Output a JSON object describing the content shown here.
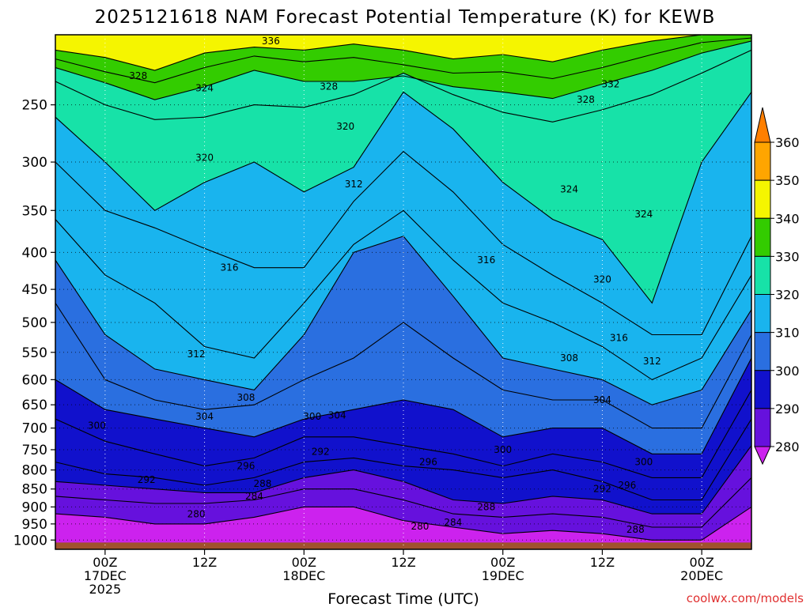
{
  "chart_data": {
    "type": "contour",
    "title": "2025121618 NAM Forecast Potential Temperature (K) for KEWB",
    "xlabel": "Forecast Time (UTC)",
    "ylabel": "",
    "credit": "coolwx.com/models",
    "y_scale": "log",
    "y_inverted": true,
    "y_ticks": [
      250,
      300,
      350,
      400,
      450,
      500,
      550,
      600,
      650,
      700,
      750,
      800,
      850,
      900,
      950,
      1000
    ],
    "ylim": [
      1030,
      200
    ],
    "x_ticks": [
      {
        "hour": 6,
        "lines": [
          "00Z",
          "17DEC",
          "2025"
        ]
      },
      {
        "hour": 18,
        "lines": [
          "12Z"
        ]
      },
      {
        "hour": 30,
        "lines": [
          "00Z",
          "18DEC"
        ]
      },
      {
        "hour": 42,
        "lines": [
          "12Z"
        ]
      },
      {
        "hour": 54,
        "lines": [
          "00Z",
          "19DEC"
        ]
      },
      {
        "hour": 66,
        "lines": [
          "12Z"
        ]
      },
      {
        "hour": 78,
        "lines": [
          "00Z",
          "20DEC"
        ]
      }
    ],
    "xlim": [
      0,
      84
    ],
    "colorbar": {
      "levels": [
        280,
        290,
        300,
        310,
        320,
        330,
        340,
        350,
        360
      ],
      "colors": [
        "#cc22ee",
        "#6611dd",
        "#1111cc",
        "#2a6fe0",
        "#19b4ee",
        "#17e2a8",
        "#33cc00",
        "#f5f500",
        "#ffa500",
        "#ff7f00"
      ]
    },
    "contour_interval": 2,
    "contours": [
      {
        "value": 336,
        "p": [
          210,
          215,
          224,
          212,
          208,
          210,
          206,
          210,
          216,
          213,
          218,
          210,
          204,
          200,
          200
        ]
      },
      {
        "value": 332,
        "p": [
          216,
          225,
          233,
          222,
          214,
          218,
          215,
          220,
          226,
          225,
          230,
          222,
          213,
          205,
          202
        ]
      },
      {
        "value": 328,
        "p": [
          222,
          233,
          246,
          236,
          224,
          232,
          232,
          228,
          236,
          240,
          245,
          234,
          224,
          212,
          204
        ]
      },
      {
        "value": 324,
        "p": [
          232,
          250,
          262,
          260,
          250,
          252,
          242,
          226,
          242,
          256,
          264,
          254,
          242,
          226,
          210
        ]
      },
      {
        "value": 320,
        "p": [
          260,
          300,
          350,
          320,
          300,
          330,
          305,
          240,
          270,
          320,
          360,
          384,
          470,
          300,
          240
        ]
      },
      {
        "value": 316,
        "p": [
          300,
          350,
          370,
          395,
          420,
          420,
          340,
          290,
          330,
          390,
          430,
          470,
          520,
          520,
          380
        ]
      },
      {
        "value": 312,
        "p": [
          360,
          430,
          470,
          540,
          560,
          470,
          390,
          350,
          410,
          470,
          500,
          540,
          600,
          560,
          430
        ]
      },
      {
        "value": 308,
        "p": [
          410,
          520,
          580,
          600,
          620,
          520,
          400,
          380,
          460,
          560,
          580,
          600,
          650,
          620,
          480
        ]
      },
      {
        "value": 304,
        "p": [
          470,
          600,
          640,
          660,
          650,
          600,
          560,
          500,
          560,
          620,
          640,
          640,
          700,
          700,
          520
        ]
      },
      {
        "value": 300,
        "p": [
          600,
          660,
          680,
          700,
          720,
          680,
          660,
          640,
          660,
          720,
          700,
          700,
          760,
          760,
          560
        ]
      },
      {
        "value": 296,
        "p": [
          680,
          730,
          760,
          790,
          770,
          720,
          720,
          740,
          760,
          790,
          760,
          780,
          820,
          820,
          620
        ]
      },
      {
        "value": 292,
        "p": [
          780,
          810,
          820,
          840,
          820,
          780,
          770,
          790,
          800,
          820,
          800,
          830,
          880,
          880,
          680
        ]
      },
      {
        "value": 288,
        "p": [
          830,
          840,
          850,
          860,
          860,
          820,
          800,
          830,
          880,
          890,
          870,
          880,
          920,
          920,
          740
        ]
      },
      {
        "value": 284,
        "p": [
          870,
          880,
          890,
          890,
          880,
          850,
          850,
          880,
          920,
          930,
          920,
          930,
          960,
          960,
          820
        ]
      },
      {
        "value": 280,
        "p": [
          920,
          930,
          950,
          950,
          930,
          900,
          900,
          940,
          960,
          980,
          970,
          980,
          1000,
          1000,
          900
        ]
      }
    ],
    "contour_hours": [
      0,
      6,
      12,
      18,
      24,
      30,
      36,
      42,
      48,
      54,
      60,
      66,
      72,
      78,
      84
    ],
    "contour_labels": [
      {
        "value": 336,
        "hour": 26,
        "p": 204
      },
      {
        "value": 328,
        "hour": 10,
        "p": 228
      },
      {
        "value": 324,
        "hour": 18,
        "p": 237
      },
      {
        "value": 328,
        "hour": 33,
        "p": 236
      },
      {
        "value": 332,
        "hour": 67,
        "p": 234
      },
      {
        "value": 328,
        "hour": 64,
        "p": 246
      },
      {
        "value": 320,
        "hour": 35,
        "p": 268
      },
      {
        "value": 320,
        "hour": 18,
        "p": 296
      },
      {
        "value": 324,
        "hour": 62,
        "p": 327
      },
      {
        "value": 324,
        "hour": 71,
        "p": 354
      },
      {
        "value": 312,
        "hour": 36,
        "p": 322
      },
      {
        "value": 316,
        "hour": 21,
        "p": 420
      },
      {
        "value": 316,
        "hour": 52,
        "p": 410
      },
      {
        "value": 320,
        "hour": 66,
        "p": 436
      },
      {
        "value": 316,
        "hour": 68,
        "p": 525
      },
      {
        "value": 312,
        "hour": 17,
        "p": 553
      },
      {
        "value": 308,
        "hour": 62,
        "p": 560
      },
      {
        "value": 312,
        "hour": 72,
        "p": 566
      },
      {
        "value": 308,
        "hour": 23,
        "p": 635
      },
      {
        "value": 304,
        "hour": 18,
        "p": 675
      },
      {
        "value": 300,
        "hour": 31,
        "p": 675
      },
      {
        "value": 304,
        "hour": 34,
        "p": 672
      },
      {
        "value": 304,
        "hour": 66,
        "p": 640
      },
      {
        "value": 300,
        "hour": 5,
        "p": 695
      },
      {
        "value": 300,
        "hour": 54,
        "p": 750
      },
      {
        "value": 292,
        "hour": 32,
        "p": 755
      },
      {
        "value": 296,
        "hour": 23,
        "p": 790
      },
      {
        "value": 296,
        "hour": 45,
        "p": 780
      },
      {
        "value": 300,
        "hour": 71,
        "p": 780
      },
      {
        "value": 292,
        "hour": 11,
        "p": 825
      },
      {
        "value": 288,
        "hour": 25,
        "p": 836
      },
      {
        "value": 284,
        "hour": 24,
        "p": 870
      },
      {
        "value": 292,
        "hour": 66,
        "p": 850
      },
      {
        "value": 296,
        "hour": 69,
        "p": 840
      },
      {
        "value": 288,
        "hour": 52,
        "p": 900
      },
      {
        "value": 280,
        "hour": 17,
        "p": 921
      },
      {
        "value": 284,
        "hour": 48,
        "p": 945
      },
      {
        "value": 280,
        "hour": 44,
        "p": 958
      },
      {
        "value": 288,
        "hour": 70,
        "p": 967
      }
    ],
    "surface_color": "#a0522d",
    "grid": true
  }
}
